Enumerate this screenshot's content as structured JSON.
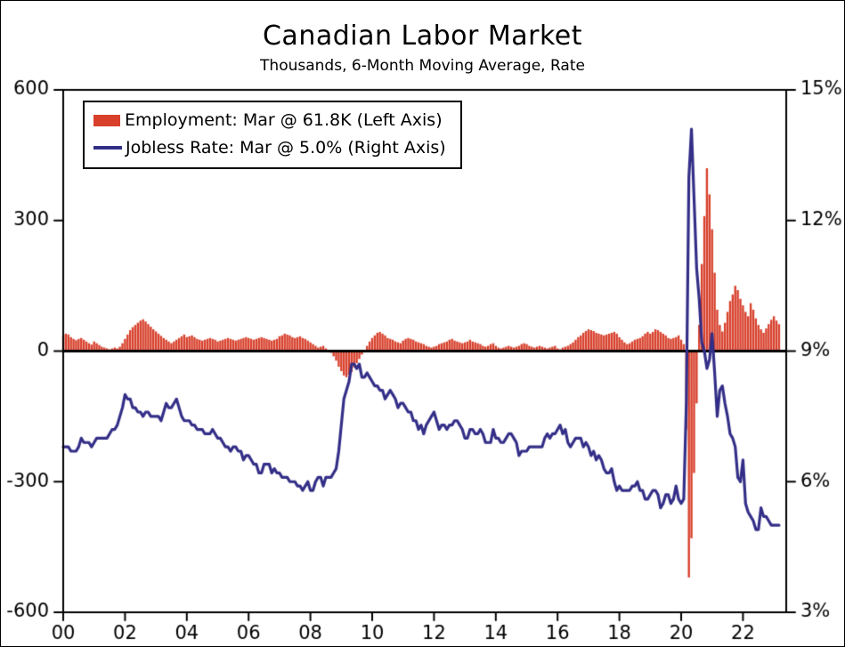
{
  "title": "Canadian Labor Market",
  "subtitle": "Thousands, 6-Month Moving Average, Rate",
  "legend": {
    "employment": "Employment: Mar @ 61.8K (Left Axis)",
    "jobless": "Jobless Rate: Mar @ 5.0% (Right Axis)"
  },
  "colors": {
    "bar": "#d8402c",
    "line": "#332e87",
    "axis": "#000000",
    "background": "#ffffff"
  },
  "chart_data": {
    "type": "bar+line",
    "title": "Canadian Labor Market",
    "subtitle": "Thousands, 6-Month Moving Average, Rate",
    "grid": false,
    "legend_position": "top-left-inside",
    "start_year": 2000,
    "points_per_year": 12,
    "x_axis": {
      "range": [
        2000,
        2023.4
      ],
      "tick_years": [
        2000,
        2002,
        2004,
        2006,
        2008,
        2010,
        2012,
        2014,
        2016,
        2018,
        2020,
        2022
      ],
      "tick_labels": [
        "00",
        "02",
        "04",
        "06",
        "08",
        "10",
        "12",
        "14",
        "16",
        "18",
        "20",
        "22"
      ]
    },
    "left_axis": {
      "label": "Thousands, 6-Month Moving Average",
      "range": [
        -600,
        600
      ],
      "tick_values": [
        600,
        300,
        0,
        -300,
        -600
      ],
      "tick_labels": [
        "600",
        "300",
        "0",
        "-300",
        "-600"
      ]
    },
    "right_axis": {
      "label": "Rate",
      "range": [
        3,
        15
      ],
      "tick_values": [
        15,
        12,
        9,
        6,
        3
      ],
      "tick_labels": [
        "15%",
        "12%",
        "9%",
        "6%",
        "3%"
      ]
    },
    "series": [
      {
        "name": "Employment (6-Month Moving Average, Thousands)",
        "type": "bar",
        "axis": "left",
        "color": "#d8402c",
        "latest_label": "Mar @ 61.8K",
        "values": [
          35,
          40,
          38,
          32,
          28,
          25,
          28,
          30,
          26,
          22,
          18,
          15,
          22,
          18,
          14,
          10,
          8,
          6,
          4,
          6,
          8,
          6,
          10,
          18,
          28,
          38,
          48,
          55,
          60,
          65,
          70,
          73,
          68,
          62,
          56,
          50,
          45,
          40,
          35,
          30,
          26,
          22,
          18,
          22,
          26,
          30,
          34,
          38,
          32,
          34,
          36,
          32,
          28,
          26,
          24,
          26,
          28,
          30,
          28,
          26,
          22,
          24,
          26,
          28,
          30,
          28,
          26,
          24,
          26,
          28,
          30,
          32,
          30,
          28,
          26,
          28,
          30,
          32,
          30,
          28,
          26,
          24,
          26,
          28,
          34,
          36,
          40,
          38,
          36,
          32,
          30,
          32,
          34,
          30,
          28,
          24,
          20,
          16,
          12,
          8,
          10,
          12,
          6,
          2,
          -4,
          -12,
          -22,
          -36,
          -46,
          -56,
          -60,
          -54,
          -48,
          -38,
          -28,
          -18,
          -8,
          2,
          12,
          22,
          30,
          36,
          42,
          44,
          40,
          36,
          30,
          28,
          26,
          22,
          20,
          18,
          24,
          28,
          30,
          28,
          26,
          22,
          20,
          18,
          16,
          12,
          10,
          8,
          10,
          12,
          16,
          18,
          20,
          22,
          26,
          28,
          24,
          22,
          20,
          18,
          20,
          22,
          26,
          22,
          20,
          18,
          16,
          12,
          10,
          12,
          16,
          18,
          12,
          8,
          6,
          8,
          10,
          12,
          10,
          8,
          10,
          12,
          16,
          18,
          16,
          12,
          10,
          8,
          10,
          12,
          10,
          8,
          6,
          8,
          10,
          12,
          6,
          4,
          8,
          10,
          12,
          16,
          20,
          26,
          32,
          36,
          42,
          46,
          50,
          48,
          46,
          42,
          40,
          38,
          36,
          38,
          40,
          42,
          44,
          40,
          32,
          26,
          20,
          16,
          18,
          22,
          26,
          28,
          30,
          34,
          40,
          44,
          40,
          44,
          50,
          48,
          44,
          40,
          36,
          30,
          28,
          30,
          32,
          36,
          26,
          16,
          -180,
          -520,
          -430,
          -280,
          -120,
          60,
          200,
          310,
          420,
          360,
          280,
          180,
          95,
          60,
          45,
          65,
          90,
          115,
          130,
          150,
          140,
          120,
          105,
          90,
          80,
          110,
          95,
          75,
          60,
          50,
          42,
          52,
          62,
          72,
          80,
          70,
          61.8
        ]
      },
      {
        "name": "Jobless Rate (%)",
        "type": "line",
        "axis": "right",
        "color": "#332e87",
        "latest_label": "Mar @ 5.0%",
        "values": [
          6.8,
          6.8,
          6.8,
          6.7,
          6.7,
          6.7,
          6.8,
          7.0,
          6.9,
          6.9,
          6.9,
          6.8,
          6.9,
          7.0,
          7.0,
          7.0,
          7.0,
          7.0,
          7.1,
          7.2,
          7.2,
          7.3,
          7.5,
          7.7,
          8.0,
          7.9,
          7.9,
          7.7,
          7.7,
          7.6,
          7.6,
          7.5,
          7.6,
          7.6,
          7.5,
          7.5,
          7.5,
          7.5,
          7.4,
          7.6,
          7.8,
          7.7,
          7.7,
          7.8,
          7.9,
          7.7,
          7.5,
          7.4,
          7.4,
          7.4,
          7.3,
          7.3,
          7.2,
          7.2,
          7.2,
          7.1,
          7.1,
          7.1,
          7.2,
          7.1,
          7.0,
          7.0,
          6.9,
          6.8,
          6.8,
          6.7,
          6.8,
          6.8,
          6.7,
          6.7,
          6.5,
          6.6,
          6.6,
          6.5,
          6.4,
          6.4,
          6.2,
          6.2,
          6.4,
          6.4,
          6.4,
          6.2,
          6.3,
          6.2,
          6.2,
          6.1,
          6.1,
          6.1,
          6.0,
          6.0,
          6.0,
          5.9,
          5.9,
          5.8,
          5.9,
          6.0,
          5.8,
          5.8,
          6.0,
          6.1,
          6.1,
          5.9,
          6.1,
          6.1,
          6.1,
          6.2,
          6.3,
          6.7,
          7.3,
          7.9,
          8.1,
          8.3,
          8.7,
          8.7,
          8.6,
          8.7,
          8.4,
          8.4,
          8.5,
          8.4,
          8.3,
          8.2,
          8.2,
          8.1,
          8.1,
          7.9,
          8.0,
          8.1,
          8.0,
          7.9,
          7.7,
          7.8,
          7.8,
          7.7,
          7.6,
          7.6,
          7.4,
          7.4,
          7.2,
          7.3,
          7.1,
          7.3,
          7.4,
          7.5,
          7.6,
          7.4,
          7.2,
          7.3,
          7.3,
          7.2,
          7.3,
          7.3,
          7.4,
          7.4,
          7.3,
          7.2,
          7.0,
          7.0,
          7.2,
          7.2,
          7.1,
          7.1,
          7.2,
          7.1,
          6.9,
          6.9,
          6.9,
          7.2,
          7.0,
          7.0,
          6.9,
          6.9,
          7.0,
          7.1,
          7.1,
          7.0,
          6.9,
          6.6,
          6.7,
          6.7,
          6.7,
          6.8,
          6.8,
          6.8,
          6.8,
          6.8,
          6.8,
          7.0,
          7.1,
          7.0,
          7.1,
          7.1,
          7.2,
          7.3,
          7.1,
          7.2,
          6.9,
          6.8,
          6.9,
          7.0,
          7.0,
          7.0,
          6.8,
          6.9,
          6.8,
          6.6,
          6.7,
          6.5,
          6.6,
          6.5,
          6.3,
          6.2,
          6.2,
          6.3,
          6.0,
          5.8,
          5.9,
          5.8,
          5.8,
          5.8,
          5.8,
          5.9,
          5.9,
          6.0,
          5.8,
          5.8,
          5.6,
          5.6,
          5.7,
          5.8,
          5.8,
          5.7,
          5.4,
          5.5,
          5.7,
          5.7,
          5.5,
          5.6,
          5.9,
          5.6,
          5.5,
          5.6,
          7.8,
          13.0,
          14.1,
          12.5,
          10.9,
          10.2,
          9.2,
          9.0,
          8.6,
          8.8,
          9.4,
          8.5,
          7.5,
          8.1,
          8.2,
          7.8,
          7.5,
          7.1,
          7.0,
          6.8,
          6.1,
          6.0,
          6.5,
          5.5,
          5.3,
          5.2,
          5.1,
          4.9,
          4.9,
          5.4,
          5.2,
          5.2,
          5.1,
          5.0,
          5.0,
          5.0,
          5.0
        ]
      }
    ]
  }
}
